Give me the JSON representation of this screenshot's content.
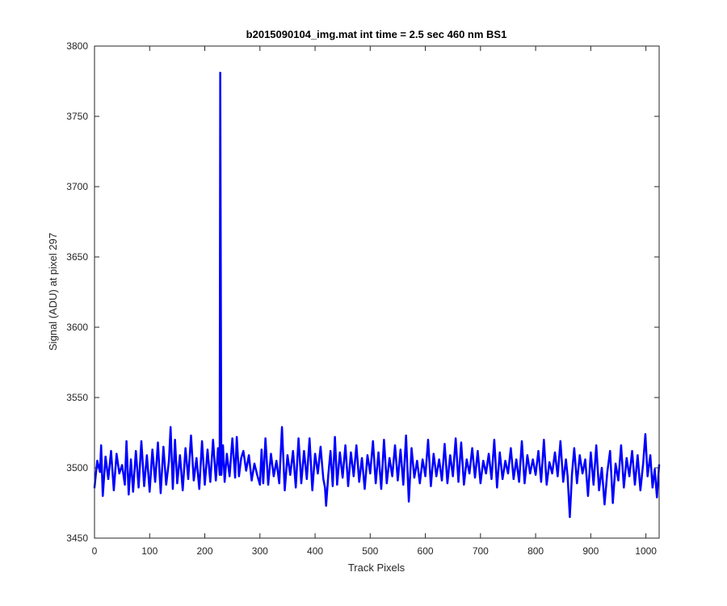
{
  "chart_data": {
    "type": "line",
    "title": "b2015090104_img.mat int time = 2.5 sec  460 nm BS1",
    "xlabel": "Track Pixels",
    "ylabel": "Signal (ADU) at pixel 297",
    "xlim": [
      0,
      1024
    ],
    "ylim": [
      3450,
      3800
    ],
    "xticks": [
      0,
      100,
      200,
      300,
      400,
      500,
      600,
      700,
      800,
      900,
      1000
    ],
    "yticks": [
      3450,
      3500,
      3550,
      3600,
      3650,
      3700,
      3750,
      3800
    ],
    "grid": false,
    "legend": "none",
    "series": [
      {
        "color": "#0000ff",
        "points": [
          [
            0,
            3486
          ],
          [
            5,
            3505
          ],
          [
            10,
            3497
          ],
          [
            12,
            3516
          ],
          [
            15,
            3480
          ],
          [
            20,
            3508
          ],
          [
            25,
            3492
          ],
          [
            30,
            3512
          ],
          [
            35,
            3484
          ],
          [
            40,
            3510
          ],
          [
            45,
            3496
          ],
          [
            50,
            3502
          ],
          [
            55,
            3488
          ],
          [
            58,
            3519
          ],
          [
            62,
            3481
          ],
          [
            66,
            3506
          ],
          [
            70,
            3483
          ],
          [
            75,
            3512
          ],
          [
            80,
            3486
          ],
          [
            85,
            3519
          ],
          [
            90,
            3487
          ],
          [
            95,
            3509
          ],
          [
            100,
            3483
          ],
          [
            105,
            3513
          ],
          [
            110,
            3490
          ],
          [
            115,
            3518
          ],
          [
            120,
            3482
          ],
          [
            125,
            3515
          ],
          [
            130,
            3488
          ],
          [
            135,
            3505
          ],
          [
            138,
            3529
          ],
          [
            142,
            3485
          ],
          [
            146,
            3520
          ],
          [
            150,
            3489
          ],
          [
            155,
            3509
          ],
          [
            160,
            3484
          ],
          [
            165,
            3514
          ],
          [
            170,
            3492
          ],
          [
            175,
            3523
          ],
          [
            180,
            3491
          ],
          [
            185,
            3507
          ],
          [
            190,
            3485
          ],
          [
            195,
            3519
          ],
          [
            200,
            3488
          ],
          [
            205,
            3513
          ],
          [
            210,
            3490
          ],
          [
            215,
            3520
          ],
          [
            220,
            3491
          ],
          [
            224,
            3514
          ],
          [
            227,
            3495
          ],
          [
            228,
            3781
          ],
          [
            230,
            3495
          ],
          [
            233,
            3516
          ],
          [
            236,
            3490
          ],
          [
            240,
            3510
          ],
          [
            245,
            3494
          ],
          [
            250,
            3521
          ],
          [
            255,
            3493
          ],
          [
            258,
            3522
          ],
          [
            262,
            3494
          ],
          [
            266,
            3507
          ],
          [
            270,
            3512
          ],
          [
            275,
            3498
          ],
          [
            280,
            3509
          ],
          [
            285,
            3491
          ],
          [
            290,
            3503
          ],
          [
            295,
            3495
          ],
          [
            300,
            3488
          ],
          [
            303,
            3513
          ],
          [
            306,
            3489
          ],
          [
            310,
            3521
          ],
          [
            315,
            3488
          ],
          [
            320,
            3510
          ],
          [
            325,
            3494
          ],
          [
            330,
            3505
          ],
          [
            335,
            3489
          ],
          [
            340,
            3529
          ],
          [
            345,
            3484
          ],
          [
            350,
            3509
          ],
          [
            355,
            3495
          ],
          [
            360,
            3512
          ],
          [
            365,
            3486
          ],
          [
            370,
            3521
          ],
          [
            375,
            3489
          ],
          [
            380,
            3512
          ],
          [
            385,
            3492
          ],
          [
            390,
            3521
          ],
          [
            395,
            3484
          ],
          [
            400,
            3510
          ],
          [
            405,
            3496
          ],
          [
            410,
            3515
          ],
          [
            415,
            3492
          ],
          [
            418,
            3486
          ],
          [
            420,
            3473
          ],
          [
            424,
            3495
          ],
          [
            428,
            3512
          ],
          [
            432,
            3487
          ],
          [
            436,
            3522
          ],
          [
            440,
            3488
          ],
          [
            445,
            3511
          ],
          [
            450,
            3493
          ],
          [
            455,
            3516
          ],
          [
            460,
            3487
          ],
          [
            465,
            3511
          ],
          [
            470,
            3494
          ],
          [
            475,
            3516
          ],
          [
            480,
            3490
          ],
          [
            485,
            3507
          ],
          [
            490,
            3485
          ],
          [
            495,
            3509
          ],
          [
            500,
            3496
          ],
          [
            505,
            3519
          ],
          [
            510,
            3489
          ],
          [
            515,
            3511
          ],
          [
            520,
            3485
          ],
          [
            525,
            3520
          ],
          [
            530,
            3489
          ],
          [
            535,
            3507
          ],
          [
            540,
            3494
          ],
          [
            545,
            3516
          ],
          [
            550,
            3491
          ],
          [
            555,
            3513
          ],
          [
            560,
            3488
          ],
          [
            565,
            3523
          ],
          [
            570,
            3476
          ],
          [
            575,
            3514
          ],
          [
            580,
            3493
          ],
          [
            585,
            3505
          ],
          [
            590,
            3489
          ],
          [
            595,
            3506
          ],
          [
            600,
            3494
          ],
          [
            605,
            3520
          ],
          [
            610,
            3487
          ],
          [
            615,
            3510
          ],
          [
            620,
            3494
          ],
          [
            625,
            3506
          ],
          [
            630,
            3491
          ],
          [
            635,
            3517
          ],
          [
            640,
            3489
          ],
          [
            645,
            3509
          ],
          [
            650,
            3494
          ],
          [
            655,
            3521
          ],
          [
            660,
            3490
          ],
          [
            665,
            3518
          ],
          [
            670,
            3488
          ],
          [
            675,
            3506
          ],
          [
            680,
            3496
          ],
          [
            685,
            3514
          ],
          [
            690,
            3493
          ],
          [
            695,
            3512
          ],
          [
            700,
            3489
          ],
          [
            705,
            3505
          ],
          [
            710,
            3496
          ],
          [
            715,
            3510
          ],
          [
            720,
            3492
          ],
          [
            725,
            3520
          ],
          [
            730,
            3486
          ],
          [
            735,
            3511
          ],
          [
            740,
            3492
          ],
          [
            745,
            3505
          ],
          [
            750,
            3496
          ],
          [
            755,
            3514
          ],
          [
            760,
            3492
          ],
          [
            765,
            3506
          ],
          [
            770,
            3490
          ],
          [
            775,
            3519
          ],
          [
            780,
            3489
          ],
          [
            785,
            3509
          ],
          [
            790,
            3496
          ],
          [
            795,
            3506
          ],
          [
            800,
            3495
          ],
          [
            805,
            3512
          ],
          [
            810,
            3490
          ],
          [
            815,
            3520
          ],
          [
            820,
            3488
          ],
          [
            825,
            3504
          ],
          [
            830,
            3496
          ],
          [
            835,
            3511
          ],
          [
            840,
            3494
          ],
          [
            845,
            3519
          ],
          [
            850,
            3490
          ],
          [
            855,
            3506
          ],
          [
            858,
            3494
          ],
          [
            862,
            3465
          ],
          [
            866,
            3496
          ],
          [
            870,
            3514
          ],
          [
            875,
            3489
          ],
          [
            880,
            3509
          ],
          [
            885,
            3496
          ],
          [
            890,
            3506
          ],
          [
            895,
            3480
          ],
          [
            900,
            3511
          ],
          [
            905,
            3488
          ],
          [
            910,
            3516
          ],
          [
            915,
            3484
          ],
          [
            920,
            3500
          ],
          [
            925,
            3474
          ],
          [
            930,
            3497
          ],
          [
            935,
            3512
          ],
          [
            940,
            3475
          ],
          [
            945,
            3503
          ],
          [
            950,
            3491
          ],
          [
            955,
            3516
          ],
          [
            960,
            3486
          ],
          [
            965,
            3507
          ],
          [
            970,
            3494
          ],
          [
            975,
            3512
          ],
          [
            980,
            3488
          ],
          [
            985,
            3509
          ],
          [
            990,
            3484
          ],
          [
            995,
            3503
          ],
          [
            999,
            3524
          ],
          [
            1003,
            3494
          ],
          [
            1008,
            3509
          ],
          [
            1012,
            3486
          ],
          [
            1016,
            3499
          ],
          [
            1020,
            3479
          ],
          [
            1024,
            3502
          ]
        ]
      }
    ]
  }
}
